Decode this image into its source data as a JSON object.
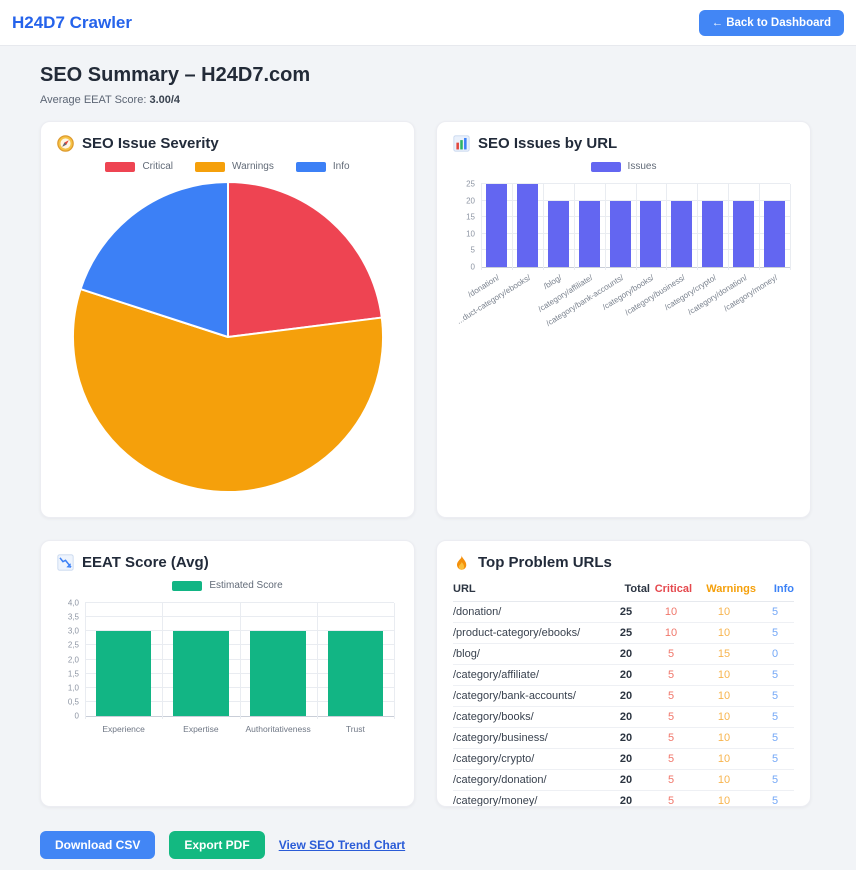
{
  "header": {
    "brand": "H24D7 Crawler",
    "back_button": "← Back to Dashboard"
  },
  "page": {
    "title": "SEO Summary – H24D7.com",
    "avg_label": "Average EEAT Score:",
    "avg_value": "3.00/4"
  },
  "cards": {
    "severity": {
      "title": "SEO Issue Severity",
      "icon": "compass-icon"
    },
    "issues_by_url": {
      "title": "SEO Issues by URL",
      "icon": "bar-chart-icon"
    },
    "eeat": {
      "title": "EEAT Score (Avg)",
      "icon": "chart-decreasing-icon"
    },
    "top_urls": {
      "title": "Top Problem URLs",
      "icon": "fire-icon"
    }
  },
  "chart_data": [
    {
      "id": "severity_pie",
      "type": "pie",
      "title": "SEO Issue Severity",
      "labels": [
        "Critical",
        "Warnings",
        "Info"
      ],
      "values": [
        23,
        57,
        20
      ],
      "values_note": "estimated percent of total, drawn clockwise starting at 12 o'clock",
      "colors": [
        "#ee4452",
        "#f5a00b",
        "#3c80f6"
      ],
      "legend_position": "top"
    },
    {
      "id": "issues_bar",
      "type": "bar",
      "title": "SEO Issues by URL",
      "categories": [
        "/donation/",
        "...duct-category/ebooks/",
        "/blog/",
        "/category/affiliate/",
        "/category/bank-accounts/",
        "/category/books/",
        "/category/business/",
        "/category/crypto/",
        "/category/donation/",
        "/category/money/"
      ],
      "series": [
        {
          "name": "Issues",
          "color": "#6366f1",
          "values": [
            25,
            25,
            20,
            20,
            20,
            20,
            20,
            20,
            20,
            20
          ]
        }
      ],
      "ylim": [
        0,
        25
      ],
      "yticks": [
        {
          "v": 0,
          "label": "0"
        },
        {
          "v": 5,
          "label": "5"
        },
        {
          "v": 10,
          "label": "10"
        },
        {
          "v": 15,
          "label": "15"
        },
        {
          "v": 20,
          "label": "20"
        },
        {
          "v": 25,
          "label": "25"
        }
      ],
      "grid": true,
      "legend_position": "top",
      "x_tick_rotation": -32
    },
    {
      "id": "eeat_bar",
      "type": "bar",
      "title": "EEAT Score (Avg)",
      "categories": [
        "Experience",
        "Expertise",
        "Authoritativeness",
        "Trust"
      ],
      "series": [
        {
          "name": "Estimated Score",
          "color": "#12b584",
          "values": [
            3,
            3,
            3,
            3
          ]
        }
      ],
      "ylim": [
        0,
        4
      ],
      "yticks": [
        {
          "v": 0,
          "label": "0"
        },
        {
          "v": 0.5,
          "label": "0,5"
        },
        {
          "v": 1,
          "label": "1,0"
        },
        {
          "v": 1.5,
          "label": "1,5"
        },
        {
          "v": 2,
          "label": "2,0"
        },
        {
          "v": 2.5,
          "label": "2,5"
        },
        {
          "v": 3,
          "label": "3,0"
        },
        {
          "v": 3.5,
          "label": "3,5"
        },
        {
          "v": 4,
          "label": "4,0"
        }
      ],
      "grid": true,
      "legend_position": "top",
      "x_tick_rotation": 0
    }
  ],
  "table": {
    "columns": [
      "URL",
      "Total",
      "Critical",
      "Warnings",
      "Info"
    ],
    "rows": [
      {
        "url": "/donation/",
        "total": 25,
        "critical": 10,
        "warnings": 10,
        "info": 5
      },
      {
        "url": "/product-category/ebooks/",
        "total": 25,
        "critical": 10,
        "warnings": 10,
        "info": 5
      },
      {
        "url": "/blog/",
        "total": 20,
        "critical": 5,
        "warnings": 15,
        "info": 0
      },
      {
        "url": "/category/affiliate/",
        "total": 20,
        "critical": 5,
        "warnings": 10,
        "info": 5
      },
      {
        "url": "/category/bank-accounts/",
        "total": 20,
        "critical": 5,
        "warnings": 10,
        "info": 5
      },
      {
        "url": "/category/books/",
        "total": 20,
        "critical": 5,
        "warnings": 10,
        "info": 5
      },
      {
        "url": "/category/business/",
        "total": 20,
        "critical": 5,
        "warnings": 10,
        "info": 5
      },
      {
        "url": "/category/crypto/",
        "total": 20,
        "critical": 5,
        "warnings": 10,
        "info": 5
      },
      {
        "url": "/category/donation/",
        "total": 20,
        "critical": 5,
        "warnings": 10,
        "info": 5
      },
      {
        "url": "/category/money/",
        "total": 20,
        "critical": 5,
        "warnings": 10,
        "info": 5
      }
    ]
  },
  "footer": {
    "download_csv": "Download CSV",
    "export_pdf": "Export PDF",
    "trend_link": "View SEO Trend Chart"
  },
  "colors": {
    "brand": "#2563eb",
    "btn_blue": "#4286f5",
    "btn_green": "#13b981",
    "link": "#2a5bd7",
    "critical_header": "#e5484d",
    "warning_header": "#f5a00b",
    "info_header": "#3c82f6",
    "critical_value": "#f0766a",
    "warning_value": "#f7b44e",
    "info_value": "#74a8f7"
  }
}
